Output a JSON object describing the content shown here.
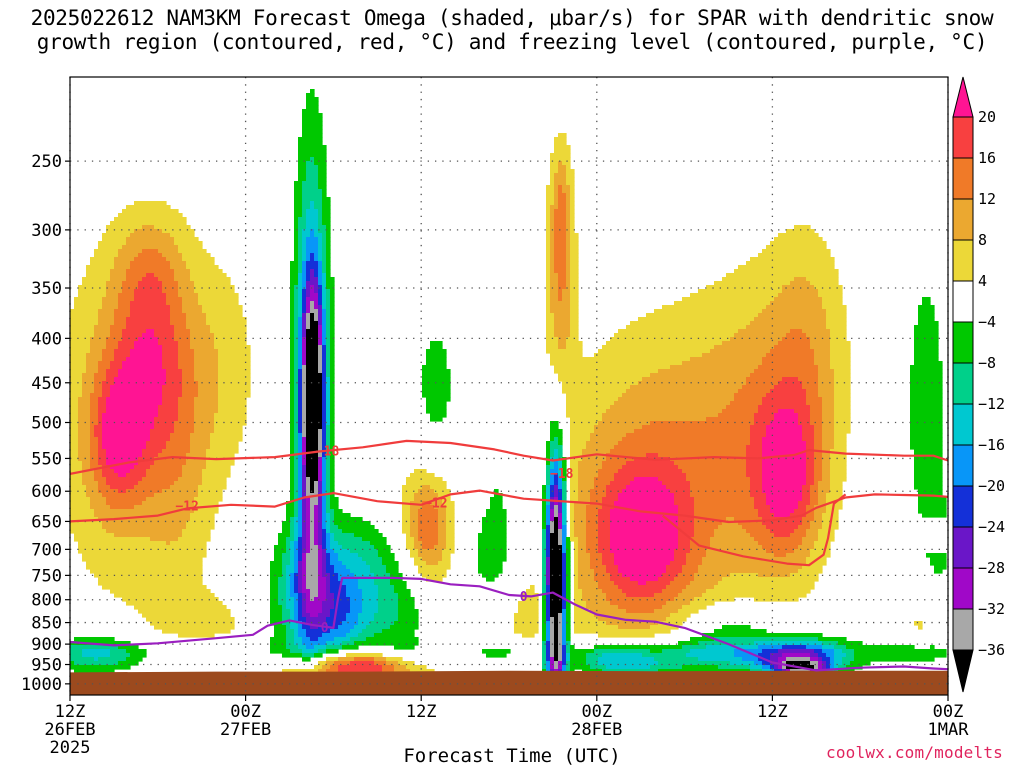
{
  "title": {
    "line1": "2025022612 NAM3KM Forecast Omega (shaded, μbar/s) for SPAR with dendritic snow",
    "line2": "growth region (contoured, red, °C) and freezing level (contoured, purple, °C)"
  },
  "credit": "coolwx.com/modelts",
  "colors": {
    "ground": "#9c4a1e",
    "red_contour": "#f03c3c",
    "purple_contour": "#9a1fc0",
    "grid": "#555555"
  },
  "chart_data": {
    "type": "heatmap",
    "xlabel": "Forecast Time (UTC)",
    "ylabel": "",
    "y_scale": "log-pressure (inverted)",
    "ylim": [
      1030,
      200
    ],
    "xlim": [
      0,
      60
    ],
    "x_ticks": [
      {
        "x": 0,
        "label1": "12Z",
        "label2": "26FEB",
        "label3": "2025"
      },
      {
        "x": 12,
        "label1": "00Z",
        "label2": "27FEB",
        "label3": ""
      },
      {
        "x": 24,
        "label1": "12Z",
        "label2": "",
        "label3": ""
      },
      {
        "x": 36,
        "label1": "00Z",
        "label2": "28FEB",
        "label3": ""
      },
      {
        "x": 48,
        "label1": "12Z",
        "label2": "",
        "label3": ""
      },
      {
        "x": 60,
        "label1": "00Z",
        "label2": "1MAR",
        "label3": ""
      }
    ],
    "y_ticks": [
      250,
      300,
      350,
      400,
      450,
      500,
      550,
      600,
      650,
      700,
      750,
      800,
      850,
      900,
      950,
      1000
    ],
    "grid": true,
    "colorbar": {
      "levels": [
        "20",
        "16",
        "12",
        "8",
        "4",
        "−4",
        "−8",
        "−12",
        "−16",
        "−20",
        "−24",
        "−28",
        "−32",
        "−36"
      ],
      "colors": [
        "#ff1493",
        "#f84040",
        "#f07a28",
        "#eba830",
        "#ecd838",
        "#ffffff",
        "#00c800",
        "#00d08a",
        "#00c8d0",
        "#0896f8",
        "#1430d8",
        "#6a16c8",
        "#a008c8",
        "#a8a8a8",
        "#000000"
      ]
    },
    "omega_blobs": [
      {
        "t": 4.0,
        "p": 500,
        "dt": 3.6,
        "lp": 0.34,
        "v": 10
      },
      {
        "t": 3.3,
        "p": 520,
        "dt": 1.3,
        "lp": 0.12,
        "v": 14
      },
      {
        "t": 5.3,
        "p": 420,
        "dt": 1.8,
        "lp": 0.17,
        "v": 11
      },
      {
        "t": 5.5,
        "p": 330,
        "dt": 1.6,
        "lp": 0.1,
        "v": 6
      },
      {
        "t": 7.5,
        "p": 530,
        "dt": 1.5,
        "lp": 0.3,
        "v": 5
      },
      {
        "t": 10.6,
        "p": 430,
        "dt": 1.8,
        "lp": 0.22,
        "v": 5
      },
      {
        "t": 16.5,
        "p": 480,
        "dt": 0.8,
        "lp": 0.45,
        "v": -23
      },
      {
        "t": 16.6,
        "p": 470,
        "dt": 0.5,
        "lp": 0.2,
        "v": -32
      },
      {
        "t": 16.4,
        "p": 750,
        "dt": 1.6,
        "lp": 0.1,
        "v": -14
      },
      {
        "t": 19.0,
        "p": 955,
        "dt": 2.5,
        "lp": 0.03,
        "v": 18
      },
      {
        "t": 20.0,
        "p": 950,
        "dt": 4.0,
        "lp": 0.05,
        "v": 11
      },
      {
        "t": 18.5,
        "p": 860,
        "dt": 1.0,
        "lp": 0.12,
        "v": -7
      },
      {
        "t": 16.8,
        "p": 870,
        "dt": 3.0,
        "lp": 0.08,
        "v": -6
      },
      {
        "t": 20.0,
        "p": 720,
        "dt": 1.5,
        "lp": 0.09,
        "v": -6
      },
      {
        "t": 21.5,
        "p": 820,
        "dt": 3.5,
        "lp": 0.12,
        "v": -9
      },
      {
        "t": 24.5,
        "p": 660,
        "dt": 1.0,
        "lp": 0.09,
        "v": 12
      },
      {
        "t": 24.3,
        "p": 630,
        "dt": 2.0,
        "lp": 0.15,
        "v": 5
      },
      {
        "t": 26.0,
        "p": 780,
        "dt": 2.0,
        "lp": 0.1,
        "v": 5
      },
      {
        "t": 28.5,
        "p": 730,
        "dt": 1.6,
        "lp": 0.12,
        "v": -7
      },
      {
        "t": 25.0,
        "p": 470,
        "dt": 1.2,
        "lp": 0.18,
        "v": -6
      },
      {
        "t": 29.5,
        "p": 540,
        "dt": 1.2,
        "lp": 0.18,
        "v": -5
      },
      {
        "t": 31.5,
        "p": 840,
        "dt": 2.0,
        "lp": 0.08,
        "v": 5
      },
      {
        "t": 33.5,
        "p": 330,
        "dt": 0.7,
        "lp": 0.22,
        "v": 12
      },
      {
        "t": 33.6,
        "p": 280,
        "dt": 0.4,
        "lp": 0.1,
        "v": 5
      },
      {
        "t": 33.2,
        "p": 760,
        "dt": 0.45,
        "lp": 0.22,
        "v": -40
      },
      {
        "t": 33.2,
        "p": 760,
        "dt": 0.62,
        "lp": 0.26,
        "v": -15
      },
      {
        "t": 37.7,
        "p": 640,
        "dt": 4.6,
        "lp": 0.3,
        "v": 8
      },
      {
        "t": 39.0,
        "p": 680,
        "dt": 2.2,
        "lp": 0.13,
        "v": 16
      },
      {
        "t": 42.0,
        "p": 560,
        "dt": 4.0,
        "lp": 0.3,
        "v": 7
      },
      {
        "t": 48.0,
        "p": 500,
        "dt": 3.2,
        "lp": 0.3,
        "v": 9
      },
      {
        "t": 49.0,
        "p": 580,
        "dt": 1.6,
        "lp": 0.15,
        "v": 15
      },
      {
        "t": 50.5,
        "p": 400,
        "dt": 1.8,
        "lp": 0.22,
        "v": 6
      },
      {
        "t": 45.0,
        "p": 850,
        "dt": 2.5,
        "lp": 0.04,
        "v": -7
      },
      {
        "t": 49.5,
        "p": 935,
        "dt": 2.2,
        "lp": 0.03,
        "v": -18
      },
      {
        "t": 50.0,
        "p": 960,
        "dt": 1.2,
        "lp": 0.015,
        "v": -25
      },
      {
        "t": 45.5,
        "p": 925,
        "dt": 5.0,
        "lp": 0.04,
        "v": -11
      },
      {
        "t": 38.0,
        "p": 950,
        "dt": 2.5,
        "lp": 0.03,
        "v": -15
      },
      {
        "t": 58.5,
        "p": 480,
        "dt": 1.0,
        "lp": 0.28,
        "v": -7
      },
      {
        "t": 59.5,
        "p": 680,
        "dt": 0.6,
        "lp": 0.08,
        "v": -5
      },
      {
        "t": 58.0,
        "p": 850,
        "dt": 0.7,
        "lp": 0.05,
        "v": 5
      },
      {
        "t": 2.0,
        "p": 930,
        "dt": 2.5,
        "lp": 0.04,
        "v": -9
      },
      {
        "t": 10.0,
        "p": 850,
        "dt": 2.5,
        "lp": 0.06,
        "v": 5
      }
    ],
    "low_level_moist": {
      "p_top": 870,
      "p_bottom": 970,
      "v": -7
    },
    "contours": [
      {
        "name": "-18",
        "label": "−18",
        "color": "#f03c3c",
        "label_at": [
          [
            17.6,
            540
          ],
          [
            33.6,
            573
          ]
        ],
        "points": [
          [
            0,
            573
          ],
          [
            4,
            556
          ],
          [
            7,
            548
          ],
          [
            10,
            551
          ],
          [
            14,
            548
          ],
          [
            17,
            540
          ],
          [
            20,
            534
          ],
          [
            23,
            525
          ],
          [
            26,
            528
          ],
          [
            29,
            537
          ],
          [
            31,
            546
          ],
          [
            33,
            553
          ],
          [
            36,
            544
          ],
          [
            40,
            552
          ],
          [
            44,
            548
          ],
          [
            47,
            550
          ],
          [
            49.5,
            545
          ],
          [
            50.5,
            538
          ],
          [
            53,
            543
          ],
          [
            57,
            546
          ],
          [
            59,
            546
          ],
          [
            60,
            553
          ]
        ]
      },
      {
        "name": "-12",
        "label": "−12",
        "color": "#f03c3c",
        "label_at": [
          [
            8.0,
            625
          ],
          [
            25.0,
            620
          ]
        ],
        "points": [
          [
            0,
            650
          ],
          [
            3,
            646
          ],
          [
            6,
            640
          ],
          [
            8,
            628
          ],
          [
            11,
            622
          ],
          [
            14,
            625
          ],
          [
            16,
            610
          ],
          [
            18,
            603
          ],
          [
            21,
            616
          ],
          [
            24,
            622
          ],
          [
            26,
            605
          ],
          [
            28,
            599
          ],
          [
            31,
            612
          ],
          [
            36,
            620
          ],
          [
            39,
            633
          ],
          [
            42,
            640
          ],
          [
            45,
            651
          ],
          [
            48,
            648
          ],
          [
            50,
            640
          ],
          [
            51,
            627
          ],
          [
            53,
            610
          ],
          [
            55,
            605
          ],
          [
            57,
            606
          ],
          [
            59,
            607
          ],
          [
            60,
            609
          ]
        ]
      },
      {
        "name": "-12b",
        "label": "",
        "color": "#f03c3c",
        "label_at": [],
        "points": [
          [
            40.5,
            640
          ],
          [
            43,
            693
          ],
          [
            46,
            713
          ],
          [
            49,
            727
          ],
          [
            50.5,
            730
          ],
          [
            51.5,
            710
          ],
          [
            51.8,
            680
          ],
          [
            52.2,
            620
          ],
          [
            53,
            605
          ]
        ]
      },
      {
        "name": "0",
        "label": "0",
        "color": "#9a1fc0",
        "label_at": [
          [
            17.4,
            862
          ],
          [
            31.0,
            794
          ]
        ],
        "points": [
          [
            0,
            895
          ],
          [
            3,
            903
          ],
          [
            6,
            898
          ],
          [
            10,
            886
          ],
          [
            12.5,
            878
          ],
          [
            13.5,
            857
          ],
          [
            15,
            845
          ],
          [
            16.5,
            855
          ],
          [
            18,
            862
          ],
          [
            18.3,
            800
          ],
          [
            18.6,
            755
          ],
          [
            22,
            755
          ],
          [
            24,
            757
          ],
          [
            26,
            768
          ],
          [
            28,
            772
          ],
          [
            30,
            790
          ],
          [
            31.5,
            793
          ],
          [
            33,
            785
          ],
          [
            34.5,
            810
          ],
          [
            36,
            832
          ],
          [
            38,
            844
          ],
          [
            40,
            848
          ],
          [
            42,
            862
          ],
          [
            45,
            900
          ],
          [
            48,
            945
          ],
          [
            51,
            965
          ],
          [
            54,
            958
          ],
          [
            57,
            955
          ],
          [
            59,
            960
          ],
          [
            60,
            962
          ]
        ]
      }
    ]
  }
}
